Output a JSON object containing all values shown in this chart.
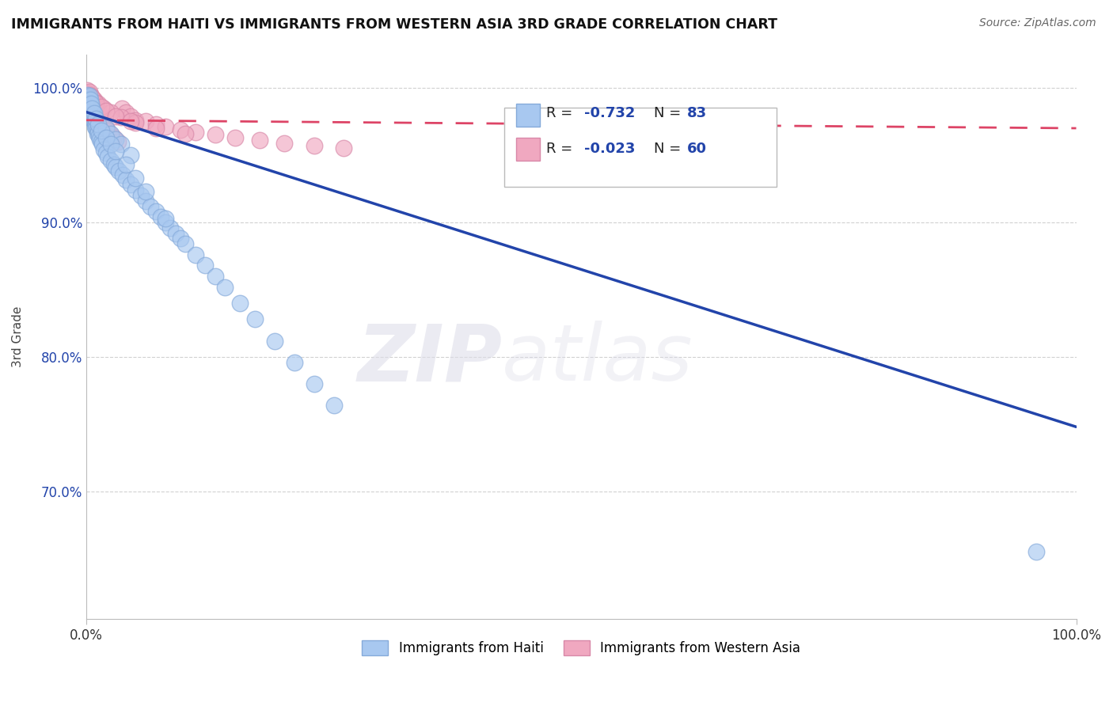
{
  "title": "IMMIGRANTS FROM HAITI VS IMMIGRANTS FROM WESTERN ASIA 3RD GRADE CORRELATION CHART",
  "source": "Source: ZipAtlas.com",
  "ylabel": "3rd Grade",
  "xlim": [
    0.0,
    1.0
  ],
  "ylim": [
    0.605,
    1.025
  ],
  "yticks": [
    0.7,
    0.8,
    0.9,
    1.0
  ],
  "ytick_labels": [
    "70.0%",
    "80.0%",
    "90.0%",
    "100.0%"
  ],
  "haiti_color": "#A8C8F0",
  "haiti_edge": "#85AADA",
  "western_asia_color": "#F0A8C0",
  "western_asia_edge": "#D888A8",
  "trend_blue": "#2244AA",
  "trend_pink": "#DD4466",
  "watermark_zip": "ZIP",
  "watermark_atlas": "atlas",
  "legend_label_1": "Immigrants from Haiti",
  "legend_label_2": "Immigrants from Western Asia",
  "haiti_trend_x0": 0.0,
  "haiti_trend_y0": 0.982,
  "haiti_trend_x1": 1.0,
  "haiti_trend_y1": 0.748,
  "wa_trend_x0": 0.0,
  "wa_trend_y0": 0.976,
  "wa_trend_x1": 1.0,
  "wa_trend_y1": 0.97,
  "haiti_x": [
    0.001,
    0.002,
    0.002,
    0.003,
    0.003,
    0.003,
    0.004,
    0.004,
    0.004,
    0.005,
    0.005,
    0.005,
    0.006,
    0.006,
    0.006,
    0.007,
    0.007,
    0.007,
    0.008,
    0.008,
    0.009,
    0.009,
    0.01,
    0.01,
    0.011,
    0.011,
    0.012,
    0.013,
    0.014,
    0.015,
    0.016,
    0.018,
    0.02,
    0.022,
    0.025,
    0.028,
    0.03,
    0.033,
    0.037,
    0.04,
    0.045,
    0.05,
    0.055,
    0.06,
    0.065,
    0.07,
    0.075,
    0.08,
    0.085,
    0.09,
    0.095,
    0.1,
    0.11,
    0.12,
    0.13,
    0.14,
    0.155,
    0.17,
    0.19,
    0.21,
    0.23,
    0.25,
    0.02,
    0.025,
    0.03,
    0.035,
    0.045,
    0.003,
    0.004,
    0.005,
    0.006,
    0.008,
    0.01,
    0.012,
    0.015,
    0.02,
    0.025,
    0.03,
    0.04,
    0.05,
    0.06,
    0.08,
    0.96
  ],
  "haiti_y": [
    0.995,
    0.993,
    0.99,
    0.992,
    0.989,
    0.986,
    0.988,
    0.985,
    0.982,
    0.987,
    0.984,
    0.981,
    0.983,
    0.98,
    0.977,
    0.982,
    0.979,
    0.976,
    0.978,
    0.975,
    0.974,
    0.971,
    0.973,
    0.97,
    0.969,
    0.966,
    0.967,
    0.964,
    0.962,
    0.96,
    0.958,
    0.954,
    0.952,
    0.949,
    0.946,
    0.943,
    0.941,
    0.938,
    0.935,
    0.932,
    0.928,
    0.924,
    0.92,
    0.916,
    0.912,
    0.908,
    0.904,
    0.9,
    0.896,
    0.892,
    0.888,
    0.884,
    0.876,
    0.868,
    0.86,
    0.852,
    0.84,
    0.828,
    0.812,
    0.796,
    0.78,
    0.764,
    0.97,
    0.966,
    0.962,
    0.958,
    0.95,
    0.994,
    0.991,
    0.988,
    0.985,
    0.981,
    0.977,
    0.973,
    0.968,
    0.963,
    0.958,
    0.953,
    0.943,
    0.933,
    0.923,
    0.903,
    0.655
  ],
  "western_asia_x": [
    0.001,
    0.002,
    0.002,
    0.003,
    0.003,
    0.004,
    0.004,
    0.005,
    0.005,
    0.006,
    0.006,
    0.007,
    0.007,
    0.008,
    0.008,
    0.009,
    0.01,
    0.011,
    0.012,
    0.013,
    0.014,
    0.015,
    0.016,
    0.018,
    0.02,
    0.022,
    0.025,
    0.028,
    0.032,
    0.036,
    0.04,
    0.045,
    0.05,
    0.06,
    0.07,
    0.08,
    0.095,
    0.11,
    0.13,
    0.15,
    0.175,
    0.2,
    0.23,
    0.26,
    0.003,
    0.005,
    0.008,
    0.012,
    0.018,
    0.025,
    0.035,
    0.05,
    0.07,
    0.1,
    0.006,
    0.01,
    0.015,
    0.02,
    0.03,
    0.045
  ],
  "western_asia_y": [
    0.998,
    0.996,
    0.993,
    0.995,
    0.992,
    0.994,
    0.991,
    0.993,
    0.99,
    0.992,
    0.989,
    0.991,
    0.988,
    0.99,
    0.987,
    0.989,
    0.987,
    0.985,
    0.983,
    0.981,
    0.979,
    0.977,
    0.975,
    0.972,
    0.97,
    0.968,
    0.965,
    0.963,
    0.96,
    0.985,
    0.982,
    0.979,
    0.976,
    0.975,
    0.973,
    0.971,
    0.969,
    0.967,
    0.965,
    0.963,
    0.961,
    0.959,
    0.957,
    0.955,
    0.997,
    0.994,
    0.991,
    0.988,
    0.985,
    0.982,
    0.978,
    0.974,
    0.97,
    0.966,
    0.993,
    0.989,
    0.986,
    0.983,
    0.979,
    0.975
  ]
}
